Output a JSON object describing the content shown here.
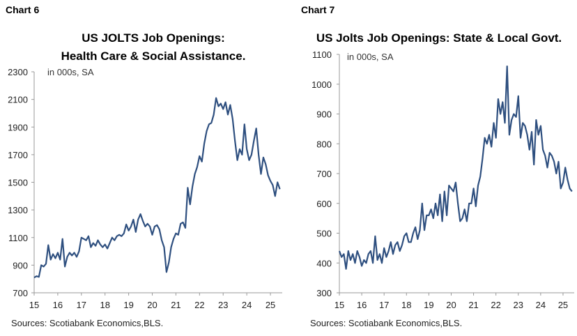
{
  "chart_data": [
    {
      "type": "line",
      "chart_label": "Chart 6",
      "title_line1": "US JOLTS Job Openings:",
      "title_line2": "Health Care & Social Assistance.",
      "unit_note": "in 000s, SA",
      "source": "Sources: Scotiabank Economics,BLS.",
      "ylim": [
        700,
        2300
      ],
      "yticks": [
        700,
        900,
        1100,
        1300,
        1500,
        1700,
        1900,
        2100,
        2300
      ],
      "xlim": [
        15,
        25.5
      ],
      "xticks": [
        15,
        16,
        17,
        18,
        19,
        20,
        21,
        22,
        23,
        24,
        25
      ],
      "xtick_labels": [
        "15",
        "16",
        "17",
        "18",
        "19",
        "20",
        "21",
        "22",
        "23",
        "24",
        "25"
      ],
      "line_color": "#2e4f7f",
      "series": [
        {
          "x": [
            15.0,
            15.1,
            15.2,
            15.3,
            15.4,
            15.5,
            15.6,
            15.7,
            15.8,
            15.9,
            16.0,
            16.1,
            16.2,
            16.3,
            16.4,
            16.5,
            16.6,
            16.7,
            16.8,
            16.9,
            17.0,
            17.1,
            17.2,
            17.3,
            17.4,
            17.5,
            17.6,
            17.7,
            17.8,
            17.9,
            18.0,
            18.1,
            18.2,
            18.3,
            18.4,
            18.5,
            18.6,
            18.7,
            18.8,
            18.9,
            19.0,
            19.1,
            19.2,
            19.3,
            19.4,
            19.5,
            19.6,
            19.7,
            19.8,
            19.9,
            20.0,
            20.1,
            20.2,
            20.3,
            20.4,
            20.5,
            20.6,
            20.7,
            20.8,
            20.9,
            21.0,
            21.1,
            21.2,
            21.3,
            21.4,
            21.5,
            21.6,
            21.7,
            21.8,
            21.9,
            22.0,
            22.1,
            22.2,
            22.3,
            22.4,
            22.5,
            22.6,
            22.7,
            22.8,
            22.9,
            23.0,
            23.1,
            23.2,
            23.3,
            23.4,
            23.5,
            23.6,
            23.7,
            23.8,
            23.9,
            24.0,
            24.1,
            24.2,
            24.3,
            24.4,
            24.5,
            24.6,
            24.7,
            24.8,
            24.9,
            25.0,
            25.1,
            25.2,
            25.3,
            25.4
          ],
          "y": [
            810,
            820,
            815,
            900,
            890,
            910,
            1045,
            940,
            980,
            950,
            990,
            940,
            1090,
            890,
            960,
            990,
            970,
            990,
            960,
            1000,
            1100,
            1090,
            1080,
            1110,
            1030,
            1060,
            1040,
            1080,
            1050,
            1030,
            1050,
            1020,
            1060,
            1100,
            1080,
            1110,
            1120,
            1110,
            1130,
            1195,
            1150,
            1180,
            1230,
            1140,
            1230,
            1270,
            1220,
            1180,
            1200,
            1180,
            1120,
            1180,
            1190,
            1160,
            1080,
            1030,
            850,
            920,
            1030,
            1090,
            1130,
            1120,
            1200,
            1210,
            1170,
            1460,
            1340,
            1470,
            1560,
            1610,
            1690,
            1650,
            1780,
            1870,
            1920,
            1930,
            1990,
            2110,
            2050,
            2070,
            2030,
            2080,
            1990,
            2060,
            1960,
            1800,
            1660,
            1740,
            1700,
            1920,
            1740,
            1660,
            1700,
            1800,
            1890,
            1700,
            1560,
            1680,
            1630,
            1550,
            1510,
            1480,
            1400,
            1500,
            1450
          ],
          "name": ""
        }
      ]
    },
    {
      "type": "line",
      "chart_label": "Chart 7",
      "title_line1": "US Jolts Job Openings: State & Local Govt.",
      "title_line2": "",
      "unit_note": "in 000s, SA",
      "source": "Sources: Scotiabank Economics,BLS.",
      "ylim": [
        300,
        1100
      ],
      "yticks": [
        300,
        400,
        500,
        600,
        700,
        800,
        900,
        1000,
        1100
      ],
      "xlim": [
        15,
        25.5
      ],
      "xticks": [
        15,
        16,
        17,
        18,
        19,
        20,
        21,
        22,
        23,
        24,
        25
      ],
      "xtick_labels": [
        "15",
        "16",
        "17",
        "18",
        "19",
        "20",
        "21",
        "22",
        "23",
        "24",
        "25"
      ],
      "line_color": "#2e4f7f",
      "series": [
        {
          "x": [
            15.0,
            15.1,
            15.2,
            15.3,
            15.4,
            15.5,
            15.6,
            15.7,
            15.8,
            15.9,
            16.0,
            16.1,
            16.2,
            16.3,
            16.4,
            16.5,
            16.6,
            16.7,
            16.8,
            16.9,
            17.0,
            17.1,
            17.2,
            17.3,
            17.4,
            17.5,
            17.6,
            17.7,
            17.8,
            17.9,
            18.0,
            18.1,
            18.2,
            18.3,
            18.4,
            18.5,
            18.6,
            18.7,
            18.8,
            18.9,
            19.0,
            19.1,
            19.2,
            19.3,
            19.4,
            19.5,
            19.6,
            19.7,
            19.8,
            19.9,
            20.0,
            20.1,
            20.2,
            20.3,
            20.4,
            20.5,
            20.6,
            20.7,
            20.8,
            20.9,
            21.0,
            21.1,
            21.2,
            21.3,
            21.4,
            21.5,
            21.6,
            21.7,
            21.8,
            21.9,
            22.0,
            22.1,
            22.2,
            22.3,
            22.4,
            22.5,
            22.6,
            22.7,
            22.8,
            22.9,
            23.0,
            23.1,
            23.2,
            23.3,
            23.4,
            23.5,
            23.6,
            23.7,
            23.8,
            23.9,
            24.0,
            24.1,
            24.2,
            24.3,
            24.4,
            24.5,
            24.6,
            24.7,
            24.8,
            24.9,
            25.0,
            25.1,
            25.2,
            25.3,
            25.4
          ],
          "y": [
            440,
            420,
            430,
            380,
            440,
            410,
            430,
            400,
            440,
            420,
            390,
            410,
            400,
            430,
            440,
            400,
            490,
            410,
            430,
            400,
            450,
            420,
            440,
            470,
            430,
            460,
            470,
            440,
            460,
            490,
            500,
            470,
            470,
            500,
            520,
            480,
            510,
            600,
            510,
            560,
            560,
            580,
            550,
            600,
            560,
            630,
            540,
            640,
            560,
            660,
            650,
            640,
            670,
            600,
            540,
            550,
            580,
            540,
            600,
            600,
            650,
            590,
            660,
            690,
            750,
            820,
            800,
            830,
            790,
            870,
            820,
            950,
            900,
            940,
            870,
            1060,
            830,
            880,
            900,
            890,
            960,
            820,
            870,
            860,
            830,
            780,
            840,
            730,
            880,
            830,
            860,
            780,
            760,
            720,
            770,
            760,
            740,
            700,
            740,
            650,
            670,
            720,
            680,
            650,
            640
          ],
          "name": ""
        }
      ]
    }
  ]
}
